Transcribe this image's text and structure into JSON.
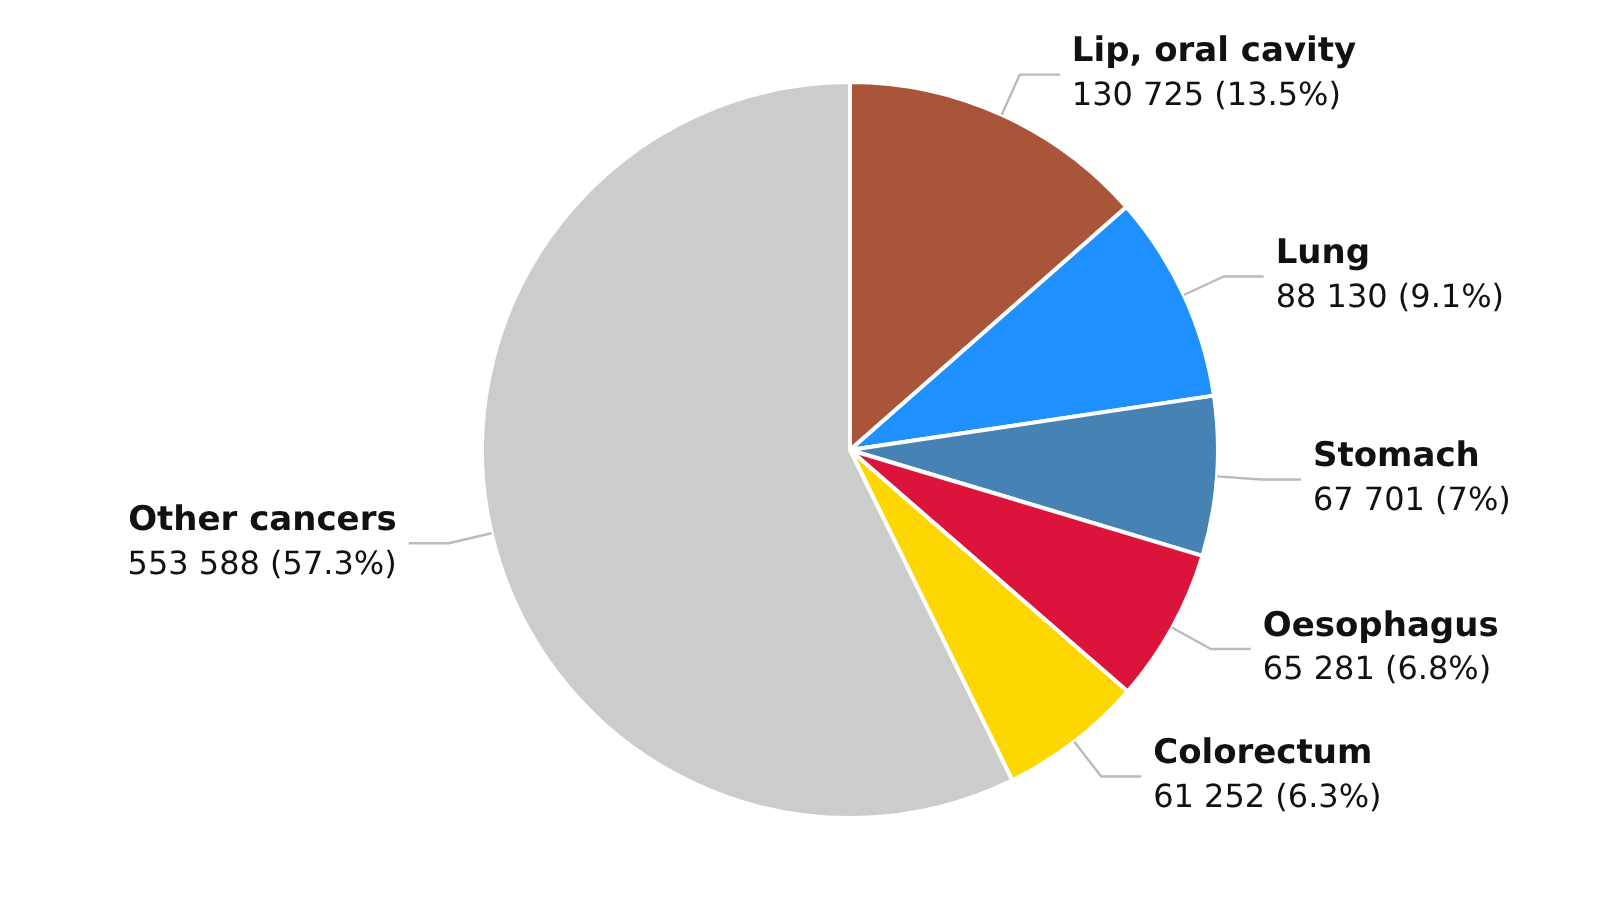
{
  "chart_data": {
    "type": "pie",
    "categories": [
      "Lip, oral cavity",
      "Lung",
      "Stomach",
      "Oesophagus",
      "Colorectum",
      "Other cancers"
    ],
    "values": [
      130725,
      88130,
      67701,
      65281,
      61252,
      553588
    ],
    "value_labels": [
      "130 725 (13.5%)",
      "88 130 (9.1%)",
      "67 701 (7%)",
      "65 281 (6.8%)",
      "61 252 (6.3%)",
      "553 588 (57.3%)"
    ],
    "colors": [
      "#a9553a",
      "#1e90ff",
      "#4682b4",
      "#dc143c",
      "#ffd700",
      "#cccccc"
    ]
  }
}
